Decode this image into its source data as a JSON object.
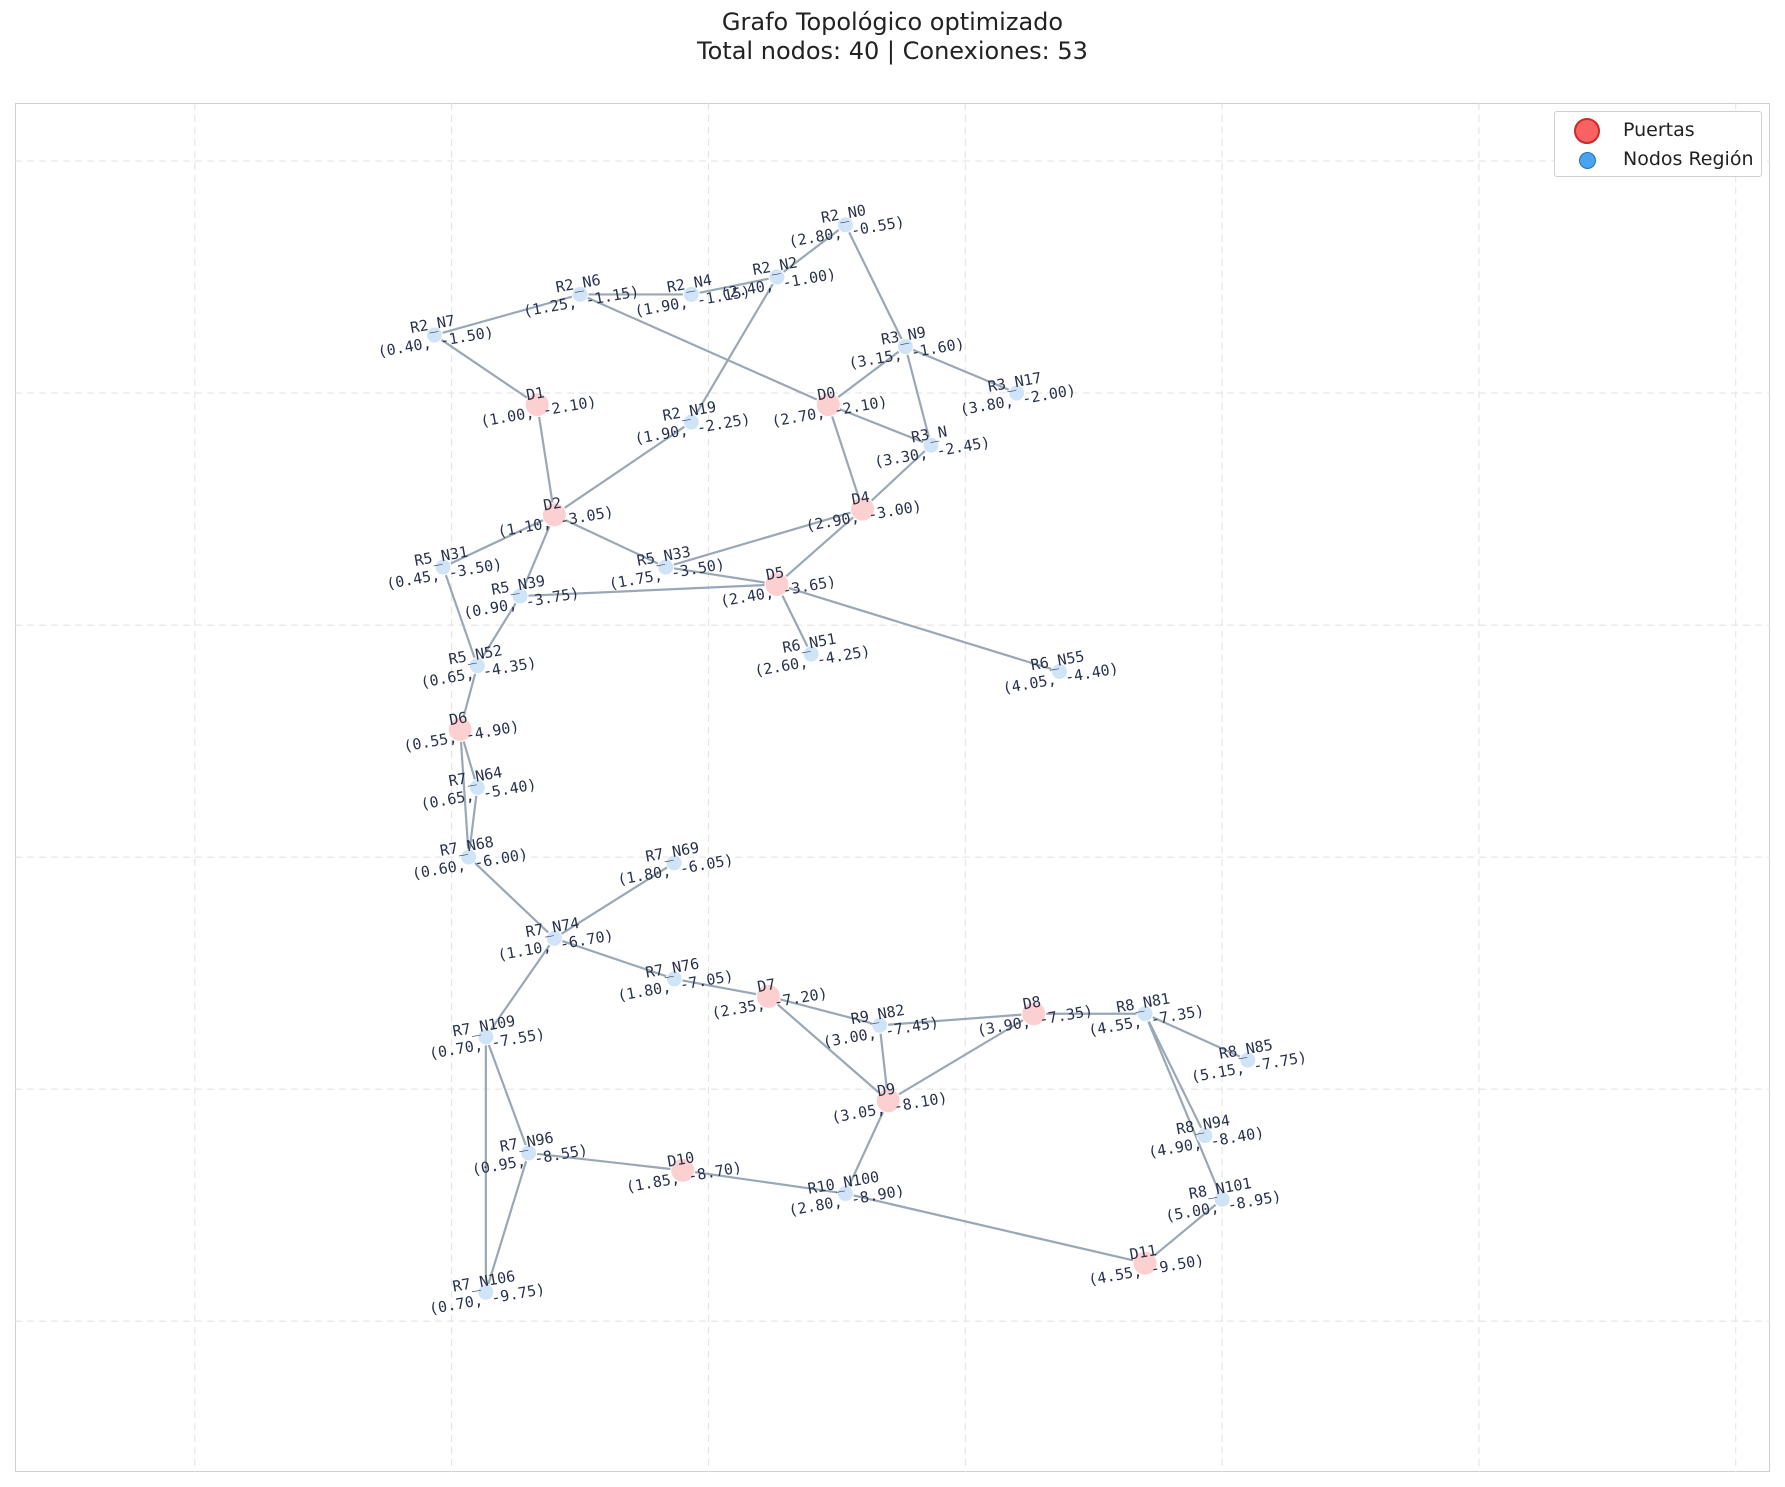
{
  "figure": {
    "title": "Grafo Topológico optimizado",
    "subtitle": "Total nodos: 40 | Conexiones: 53"
  },
  "legend": {
    "items": [
      {
        "label": "Puertas",
        "color": "#f86262",
        "edge_color": "#cc2a2a"
      },
      {
        "label": "Nodos Región",
        "color": "#4aa3ee",
        "edge_color": "#2470b6"
      }
    ],
    "placement": "top-right"
  },
  "chart_data": {
    "type": "scatter",
    "xlim": [
      -2.05,
      8.2
    ],
    "ylim": [
      -11.3,
      0.5
    ],
    "grid": true,
    "x_ticks": [
      -1,
      0.5,
      2,
      3.5,
      5,
      6.5,
      8
    ],
    "y_ticks": [
      0,
      -2,
      -4,
      -6,
      -8,
      -10
    ],
    "label_format": "({x}, {y})",
    "colors": {
      "edge": "#9aa8b5",
      "door_fill": "#fcd0d0",
      "region_fill": "#cfe4f7",
      "label": "#27304a"
    },
    "nodes": [
      {
        "id": "R2_N0",
        "kind": "region",
        "x": 2.8,
        "y": -0.55
      },
      {
        "id": "R2_N2",
        "kind": "region",
        "x": 2.4,
        "y": -1.0
      },
      {
        "id": "R2_N4",
        "kind": "region",
        "x": 1.9,
        "y": -1.15
      },
      {
        "id": "R2_N6",
        "kind": "region",
        "x": 1.25,
        "y": -1.15
      },
      {
        "id": "R2_N7",
        "kind": "region",
        "x": 0.4,
        "y": -1.5
      },
      {
        "id": "R3_N9",
        "kind": "region",
        "x": 3.15,
        "y": -1.6
      },
      {
        "id": "R3_N17",
        "kind": "region",
        "x": 3.8,
        "y": -2.0
      },
      {
        "id": "D1",
        "kind": "door",
        "x": 1.0,
        "y": -2.1
      },
      {
        "id": "D0",
        "kind": "door",
        "x": 2.7,
        "y": -2.1
      },
      {
        "id": "R2_N19",
        "kind": "region",
        "x": 1.9,
        "y": -2.25
      },
      {
        "id": "R3_N",
        "kind": "region",
        "x": 3.3,
        "y": -2.45
      },
      {
        "id": "D2",
        "kind": "door",
        "x": 1.1,
        "y": -3.05
      },
      {
        "id": "D4",
        "kind": "door",
        "x": 2.9,
        "y": -3.0
      },
      {
        "id": "R5_N31",
        "kind": "region",
        "x": 0.45,
        "y": -3.5
      },
      {
        "id": "R5_N33",
        "kind": "region",
        "x": 1.75,
        "y": -3.5
      },
      {
        "id": "D5",
        "kind": "door",
        "x": 2.4,
        "y": -3.65
      },
      {
        "id": "R5_N39",
        "kind": "region",
        "x": 0.9,
        "y": -3.75
      },
      {
        "id": "R6_N51",
        "kind": "region",
        "x": 2.6,
        "y": -4.25
      },
      {
        "id": "R5_N52",
        "kind": "region",
        "x": 0.65,
        "y": -4.35
      },
      {
        "id": "R6_N55",
        "kind": "region",
        "x": 4.05,
        "y": -4.4
      },
      {
        "id": "D6",
        "kind": "door",
        "x": 0.55,
        "y": -4.9
      },
      {
        "id": "R7_N64",
        "kind": "region",
        "x": 0.65,
        "y": -5.4
      },
      {
        "id": "R7_N68",
        "kind": "region",
        "x": 0.6,
        "y": -6.0
      },
      {
        "id": "R7_N69",
        "kind": "region",
        "x": 1.8,
        "y": -6.05
      },
      {
        "id": "R7_N74",
        "kind": "region",
        "x": 1.1,
        "y": -6.7
      },
      {
        "id": "R7_N76",
        "kind": "region",
        "x": 1.8,
        "y": -7.05
      },
      {
        "id": "D7",
        "kind": "door",
        "x": 2.35,
        "y": -7.2
      },
      {
        "id": "D8",
        "kind": "door",
        "x": 3.9,
        "y": -7.35
      },
      {
        "id": "R8_N81",
        "kind": "region",
        "x": 4.55,
        "y": -7.35
      },
      {
        "id": "R9_N82",
        "kind": "region",
        "x": 3.0,
        "y": -7.45
      },
      {
        "id": "R7_N109",
        "kind": "region",
        "x": 0.7,
        "y": -7.55
      },
      {
        "id": "R8_N85",
        "kind": "region",
        "x": 5.15,
        "y": -7.75
      },
      {
        "id": "D9",
        "kind": "door",
        "x": 3.05,
        "y": -8.1
      },
      {
        "id": "R8_N94",
        "kind": "region",
        "x": 4.9,
        "y": -8.4
      },
      {
        "id": "R7_N96",
        "kind": "region",
        "x": 0.95,
        "y": -8.55
      },
      {
        "id": "D10",
        "kind": "door",
        "x": 1.85,
        "y": -8.7
      },
      {
        "id": "R10_N100",
        "kind": "region",
        "x": 2.8,
        "y": -8.9
      },
      {
        "id": "R8_N101",
        "kind": "region",
        "x": 5.0,
        "y": -8.95
      },
      {
        "id": "D11",
        "kind": "door",
        "x": 4.55,
        "y": -9.5
      },
      {
        "id": "R7_N106",
        "kind": "region",
        "x": 0.7,
        "y": -9.75
      }
    ],
    "edges": [
      [
        "R2_N0",
        "R3_N9"
      ],
      [
        "R2_N0",
        "R2_N2"
      ],
      [
        "R2_N2",
        "R2_N19"
      ],
      [
        "R2_N2",
        "R2_N4"
      ],
      [
        "R2_N4",
        "R2_N6"
      ],
      [
        "R2_N6",
        "D0"
      ],
      [
        "R2_N6",
        "R2_N7"
      ],
      [
        "R2_N7",
        "D1"
      ],
      [
        "R3_N9",
        "R3_N17"
      ],
      [
        "R3_N9",
        "D0"
      ],
      [
        "R3_N9",
        "R3_N"
      ],
      [
        "D0",
        "R3_N"
      ],
      [
        "D0",
        "D4"
      ],
      [
        "D1",
        "D2"
      ],
      [
        "D2",
        "R2_N19"
      ],
      [
        "D2",
        "R5_N33"
      ],
      [
        "D2",
        "R5_N31"
      ],
      [
        "D2",
        "R5_N39"
      ],
      [
        "R5_N33",
        "D5"
      ],
      [
        "R5_N33",
        "D4"
      ],
      [
        "R5_N39",
        "D5"
      ],
      [
        "D4",
        "D5"
      ],
      [
        "D4",
        "R3_N"
      ],
      [
        "D5",
        "R6_N51"
      ],
      [
        "D5",
        "R6_N55"
      ],
      [
        "R5_N31",
        "R5_N52"
      ],
      [
        "R5_N39",
        "R5_N52"
      ],
      [
        "R5_N52",
        "D6"
      ],
      [
        "D6",
        "R7_N64"
      ],
      [
        "D6",
        "R7_N68"
      ],
      [
        "R7_N64",
        "R7_N68"
      ],
      [
        "R7_N68",
        "R7_N74"
      ],
      [
        "R7_N69",
        "R7_N74"
      ],
      [
        "R7_N74",
        "R7_N76"
      ],
      [
        "R7_N74",
        "R7_N109"
      ],
      [
        "R7_N76",
        "D7"
      ],
      [
        "D7",
        "R9_N82"
      ],
      [
        "D7",
        "D9"
      ],
      [
        "R9_N82",
        "D9"
      ],
      [
        "R9_N82",
        "D8"
      ],
      [
        "D8",
        "R8_N81"
      ],
      [
        "D8",
        "D9"
      ],
      [
        "R8_N81",
        "R8_N85"
      ],
      [
        "R8_N81",
        "R8_N94"
      ],
      [
        "R8_N81",
        "R8_N101"
      ],
      [
        "R8_N101",
        "D11"
      ],
      [
        "R7_N109",
        "R7_N96"
      ],
      [
        "R7_N109",
        "R7_N106"
      ],
      [
        "R7_N96",
        "R7_N106"
      ],
      [
        "R7_N96",
        "D10"
      ],
      [
        "D10",
        "R10_N100"
      ],
      [
        "R10_N100",
        "D9"
      ],
      [
        "R10_N100",
        "D11"
      ]
    ]
  }
}
